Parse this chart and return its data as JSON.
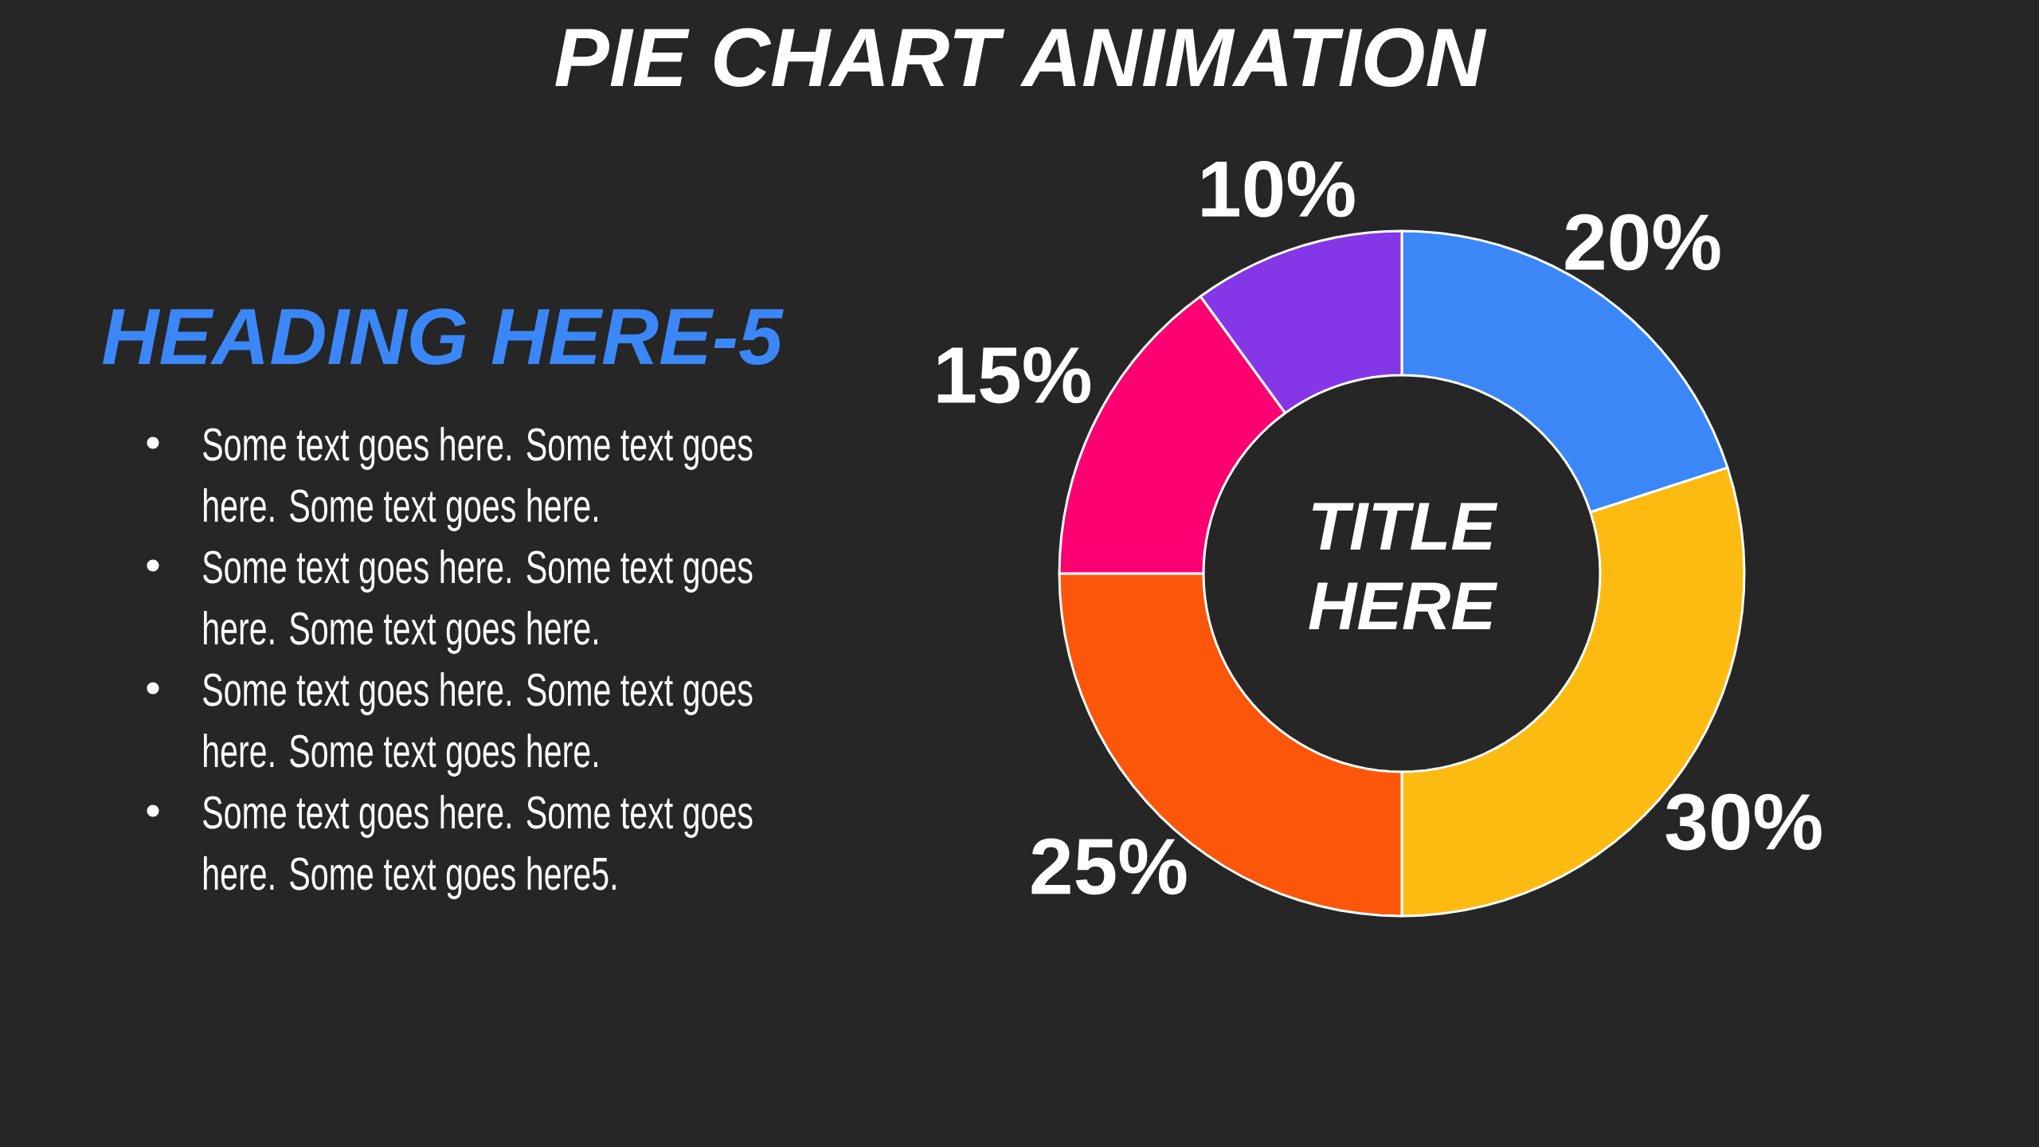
{
  "chart_data": {
    "type": "donut",
    "title": "PIE CHART ANIMATION",
    "categories": [
      null,
      null,
      null,
      null,
      null
    ],
    "values": [
      20,
      30,
      25,
      15,
      10
    ],
    "colors": [
      "#3b87f8",
      "#fdbb12",
      "#fc560a",
      "#fc0072",
      "#8537e8"
    ],
    "value_labels": [
      "20%",
      "30%",
      "25%",
      "15%",
      "10%"
    ],
    "annotations": [
      "HEADING HERE-5",
      "Some text goes here. Some text goes here. Some text goes here.",
      "Some text goes here. Some text goes here. Some text goes here.",
      "Some text goes here. Some text goes here. Some text goes here.",
      "Some text goes here. Some text goes here. Some text goes here5.",
      "TITLE HERE"
    ]
  }
}
